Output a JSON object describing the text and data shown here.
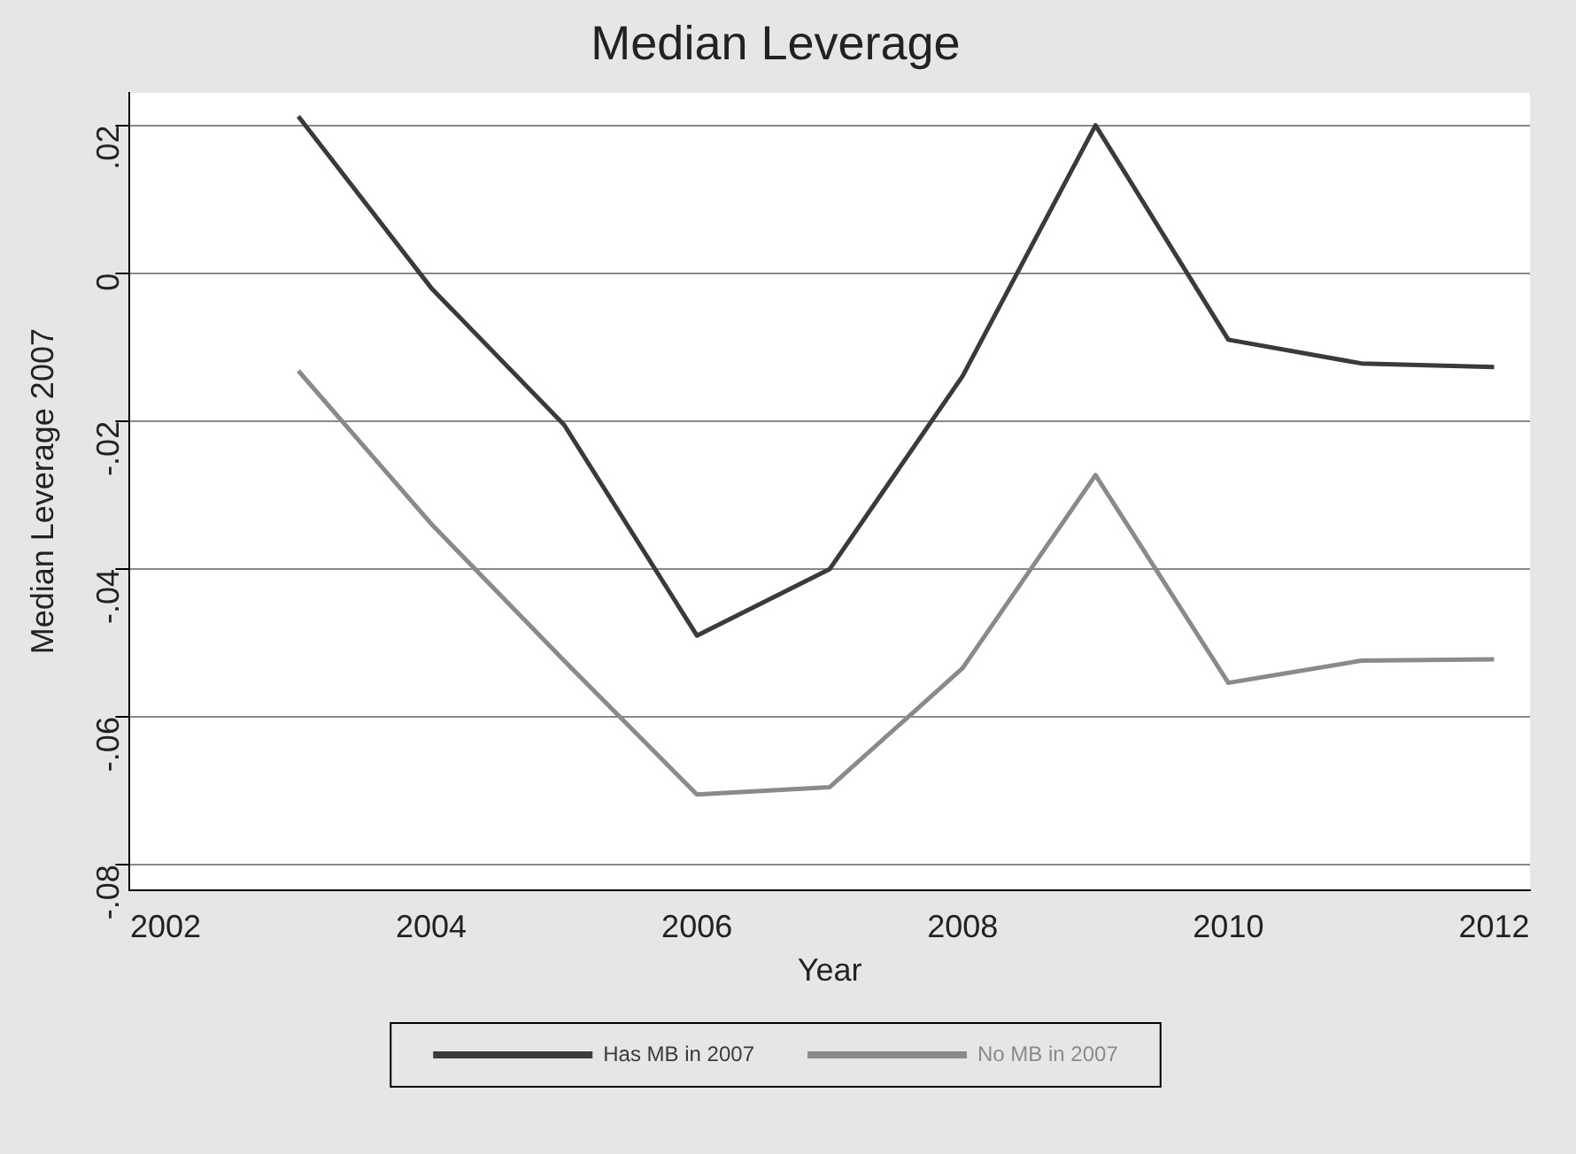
{
  "chart_data": {
    "type": "line",
    "title": "Median Leverage",
    "xlabel": "Year",
    "ylabel": "Median Leverage 2007",
    "x": [
      2003,
      2004,
      2005,
      2006,
      2007,
      2008,
      2009,
      2010,
      2011,
      2012
    ],
    "series": [
      {
        "name": "Has MB in 2007",
        "color": "#3a3a3a",
        "values": [
          0.0212,
          -0.002,
          -0.0205,
          -0.049,
          -0.04,
          -0.0139,
          0.02,
          -0.009,
          -0.0122,
          -0.0127
        ]
      },
      {
        "name": "No MB in 2007",
        "color": "#8a8a8a",
        "values": [
          -0.0132,
          -0.0339,
          -0.0524,
          -0.0705,
          -0.0695,
          -0.0534,
          -0.0273,
          -0.0554,
          -0.0524,
          -0.0522
        ]
      }
    ],
    "xlim": [
      2001.73,
      2012.27
    ],
    "xticks": [
      2002,
      2004,
      2006,
      2008,
      2010,
      2012
    ],
    "ylim": [
      -0.0834,
      0.0244
    ],
    "yticks": [
      {
        "value": -0.08,
        "label": "-.08"
      },
      {
        "value": -0.06,
        "label": "-.06"
      },
      {
        "value": -0.04,
        "label": "-.04"
      },
      {
        "value": -0.02,
        "label": "-.02"
      },
      {
        "value": 0,
        "label": "0"
      },
      {
        "value": 0.02,
        "label": ".02"
      }
    ],
    "grid": "y",
    "legend": "bottom",
    "marker": "none",
    "line_style": "solid"
  }
}
